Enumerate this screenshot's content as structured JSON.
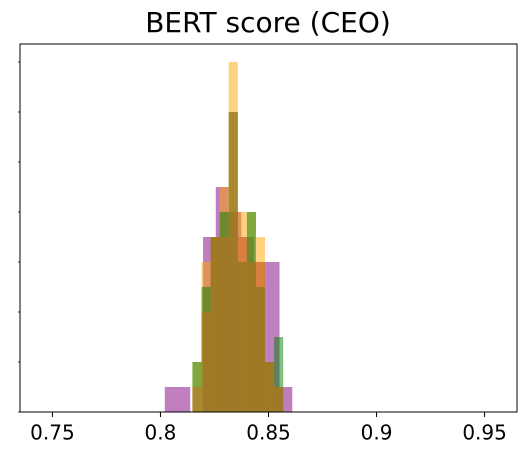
{
  "chart_data": {
    "type": "histogram",
    "title": "BERT score (CEO)",
    "xlim": [
      0.735,
      0.965
    ],
    "xticks": [
      0.75,
      0.8,
      0.85,
      0.9,
      0.95
    ],
    "ylim": [
      0,
      7.36
    ],
    "yticks": [
      0,
      1,
      2,
      3,
      4,
      5,
      6,
      7
    ],
    "alpha": 0.5,
    "series": [
      {
        "color": "#800080",
        "bins": [
          0.802,
          0.8079,
          0.8138,
          0.8197,
          0.8256,
          0.8315,
          0.8374,
          0.8433,
          0.8492,
          0.8551,
          0.861
        ],
        "values": [
          0.5,
          0.5,
          0,
          3.5,
          4.5,
          4,
          3.5,
          3,
          3,
          0.5
        ]
      },
      {
        "color": "#ffa500",
        "bins": [
          0.8148,
          0.819,
          0.8232,
          0.8274,
          0.8316,
          0.8358,
          0.84,
          0.8442,
          0.8484,
          0.8526,
          0.8568
        ],
        "values": [
          1,
          3,
          3.5,
          4.5,
          7,
          4,
          4,
          3.5,
          1,
          0.5
        ]
      },
      {
        "color": "#008000",
        "bins": [
          0.8148,
          0.819,
          0.8232,
          0.8274,
          0.8316,
          0.8358,
          0.84,
          0.8442,
          0.8484,
          0.8526,
          0.8568
        ],
        "values": [
          1,
          2.5,
          3.5,
          4,
          6,
          3,
          4,
          2.5,
          1,
          1.5
        ]
      },
      {
        "color": "#d2691e",
        "bins": [
          0.8148,
          0.819,
          0.8232,
          0.8274,
          0.8316,
          0.8358,
          0.84,
          0.8442,
          0.8484,
          0.8526,
          0.8568
        ],
        "values": [
          0.5,
          2,
          3.5,
          3.5,
          6,
          3.5,
          3,
          3,
          1,
          0.5
        ]
      }
    ]
  }
}
